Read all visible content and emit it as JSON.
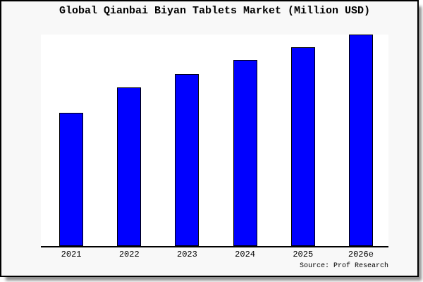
{
  "window": {
    "background": "#ffffff"
  },
  "frame": {
    "background": "#f8f8f8",
    "border_color": "#000000",
    "shadow_color": "#8f8f8f"
  },
  "chart_data": {
    "type": "bar",
    "title": "Global Qianbai Biyan Tablets Market (Million USD)",
    "categories": [
      "2021",
      "2022",
      "2023",
      "2024",
      "2025",
      "2026e"
    ],
    "values": [
      63,
      75,
      81.5,
      88,
      94,
      100
    ],
    "ylim": [
      0,
      100
    ],
    "values_note": "relative bar heights; chart displays no y-axis scale or data labels",
    "xlabel": "",
    "ylabel": "",
    "y_axis_visible": false,
    "grid": false,
    "legend": false,
    "bar_color": "#0000ff",
    "bar_border_color": "#000000",
    "axis_line_color": "#000000",
    "plot_background": "#ffffff",
    "source_note": "Source: Prof Research"
  }
}
